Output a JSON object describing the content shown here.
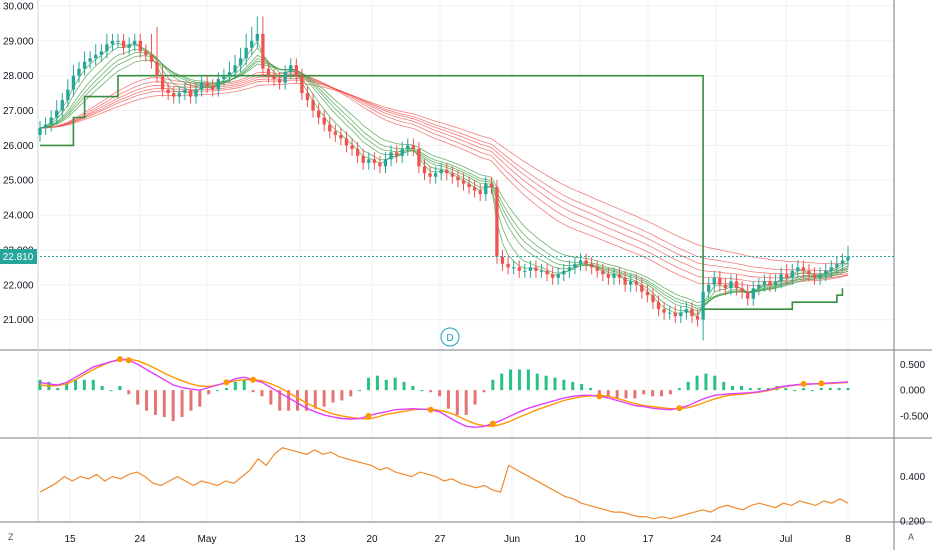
{
  "colors": {
    "up": "#26a69a",
    "down": "#ef5350",
    "ema_fast": "#43a047",
    "ema_slow": "#ef5350",
    "stop_green": "#388e3c",
    "stop_red": "#e53935",
    "macd": "#e040fb",
    "signal": "#ff9800",
    "hist_up": "#26c281",
    "hist_down": "#e57373",
    "rsi": "#ef8a2f",
    "grid": "#eef0f3",
    "price_line": "#26a69a",
    "badge": "#1e9fbf"
  },
  "current_price": "22.810",
  "event_marker": "D",
  "corner_left": "Z",
  "corner_right": "A",
  "x_ticks": [
    "15",
    "24",
    "May",
    "13",
    "20",
    "27",
    "Jun",
    "10",
    "17",
    "24",
    "Jul",
    "8"
  ],
  "chart_data": [
    {
      "type": "candlestick",
      "panel": "price",
      "ylim": [
        20.3,
        30.0
      ],
      "y_ticks": [
        "30.000",
        "29.000",
        "28.000",
        "27.000",
        "26.000",
        "25.000",
        "24.000",
        "23.000",
        "22.000",
        "21.000"
      ],
      "close": [
        26.5,
        26.6,
        26.8,
        27.0,
        27.3,
        27.6,
        28.0,
        28.2,
        28.4,
        28.5,
        28.6,
        28.7,
        28.9,
        29.0,
        29.0,
        28.8,
        28.9,
        29.0,
        28.7,
        28.6,
        28.4,
        28.0,
        27.6,
        27.5,
        27.4,
        27.5,
        27.6,
        27.4,
        27.6,
        27.8,
        27.7,
        27.6,
        27.9,
        28.0,
        28.1,
        28.3,
        28.5,
        28.8,
        29.0,
        29.2,
        28.2,
        28.0,
        27.9,
        27.8,
        28.1,
        28.3,
        28.0,
        27.5,
        27.3,
        27.0,
        26.8,
        26.6,
        26.4,
        26.3,
        26.2,
        26.0,
        25.9,
        25.7,
        25.5,
        25.6,
        25.5,
        25.4,
        25.6,
        25.8,
        25.7,
        25.9,
        26.0,
        25.9,
        25.4,
        25.2,
        25.1,
        25.2,
        25.3,
        25.2,
        25.1,
        25.0,
        24.9,
        24.8,
        24.7,
        24.6,
        24.9,
        24.8,
        22.8,
        22.6,
        22.5,
        22.5,
        22.4,
        22.4,
        22.5,
        22.4,
        22.4,
        22.3,
        22.2,
        22.3,
        22.4,
        22.5,
        22.6,
        22.7,
        22.6,
        22.5,
        22.4,
        22.3,
        22.2,
        22.3,
        22.2,
        22.0,
        22.1,
        22.0,
        21.8,
        21.7,
        21.5,
        21.3,
        21.2,
        21.2,
        21.1,
        21.2,
        21.3,
        21.1,
        21.0,
        21.8,
        22.0,
        22.2,
        22.0,
        21.9,
        22.1,
        21.9,
        21.8,
        21.6,
        21.9,
        22.0,
        22.1,
        22.0,
        22.1,
        22.3,
        22.2,
        22.4,
        22.5,
        22.4,
        22.3,
        22.2,
        22.3,
        22.4,
        22.5,
        22.6,
        22.7,
        22.81
      ],
      "open_offset": [
        -0.2,
        -0.1,
        -0.2,
        -0.2,
        -0.3,
        -0.3,
        -0.4,
        -0.2,
        -0.2,
        -0.1,
        -0.1,
        -0.1,
        -0.2,
        -0.1,
        0.0,
        0.2,
        -0.1,
        -0.1,
        0.3,
        0.1,
        0.2,
        0.4,
        0.4,
        0.1,
        0.1,
        -0.1,
        -0.1,
        0.2,
        -0.2,
        -0.2,
        0.1,
        0.1,
        -0.3,
        -0.1,
        -0.1,
        -0.2,
        -0.2,
        -0.3,
        -0.2,
        -0.2,
        1.0,
        0.2,
        0.1,
        0.1,
        -0.3,
        -0.2,
        0.3,
        0.5,
        0.2,
        0.3,
        0.2,
        0.2,
        0.2,
        0.1,
        0.1,
        0.2,
        0.1,
        0.2,
        0.2,
        -0.1,
        0.1,
        0.1,
        -0.2,
        -0.2,
        0.1,
        -0.2,
        -0.1,
        0.1,
        0.5,
        0.2,
        0.1,
        -0.1,
        -0.1,
        0.1,
        0.1,
        0.1,
        0.1,
        0.1,
        0.1,
        0.1,
        -0.3,
        0.1,
        2.0,
        0.2,
        0.1,
        0.0,
        0.1,
        0.0,
        -0.1,
        0.1,
        0.0,
        0.1,
        0.1,
        -0.1,
        -0.1,
        -0.1,
        -0.1,
        -0.1,
        0.1,
        0.1,
        0.1,
        0.1,
        0.1,
        -0.1,
        0.1,
        0.2,
        -0.1,
        0.1,
        0.2,
        0.1,
        0.2,
        0.2,
        0.1,
        0.0,
        0.1,
        -0.1,
        -0.1,
        0.2,
        0.1,
        -0.8,
        -0.2,
        -0.2,
        0.2,
        0.1,
        -0.2,
        0.2,
        0.1,
        0.2,
        -0.3,
        -0.1,
        -0.1,
        0.1,
        -0.1,
        -0.2,
        0.1,
        -0.2,
        -0.1,
        0.1,
        0.1,
        0.1,
        -0.1,
        -0.1,
        -0.1,
        -0.1,
        -0.1,
        -0.11
      ],
      "wick_up": [
        0.2,
        0.2,
        0.2,
        0.3,
        0.2,
        0.3,
        0.3,
        0.2,
        0.3,
        0.2,
        0.3,
        0.2,
        0.3,
        0.2,
        0.2,
        0.2,
        0.2,
        0.2,
        0.2,
        0.2,
        0.6,
        1.0,
        0.3,
        0.2,
        0.2,
        0.2,
        0.2,
        0.2,
        0.2,
        0.2,
        0.2,
        0.2,
        0.2,
        0.2,
        0.3,
        0.3,
        0.3,
        0.4,
        0.4,
        0.5,
        0.5,
        0.2,
        0.2,
        0.2,
        0.2,
        0.2,
        0.2,
        0.2,
        0.2,
        0.2,
        0.2,
        0.2,
        0.2,
        0.2,
        0.2,
        0.2,
        0.2,
        0.2,
        0.2,
        0.2,
        0.2,
        0.2,
        0.2,
        0.2,
        0.2,
        0.2,
        0.2,
        0.2,
        0.2,
        0.2,
        0.2,
        0.2,
        0.2,
        0.2,
        0.2,
        0.2,
        0.2,
        0.2,
        0.2,
        0.2,
        0.2,
        0.2,
        0.2,
        0.2,
        0.2,
        0.2,
        0.2,
        0.2,
        0.2,
        0.2,
        0.2,
        0.2,
        0.2,
        0.2,
        0.2,
        0.2,
        0.2,
        0.2,
        0.2,
        0.2,
        0.2,
        0.2,
        0.2,
        0.2,
        0.2,
        0.2,
        0.2,
        0.2,
        0.2,
        0.2,
        0.2,
        0.2,
        0.2,
        0.2,
        0.2,
        0.2,
        0.2,
        0.2,
        0.2,
        0.2,
        0.2,
        0.2,
        0.2,
        0.2,
        0.2,
        0.2,
        0.2,
        0.2,
        0.2,
        0.2,
        0.2,
        0.2,
        0.2,
        0.2,
        0.3,
        0.2,
        0.2,
        0.2,
        0.2,
        0.2,
        0.2,
        0.2,
        0.2,
        0.2,
        0.2,
        0.3
      ],
      "wick_down": [
        0.2,
        0.2,
        0.2,
        0.2,
        0.2,
        0.2,
        0.2,
        0.2,
        0.2,
        0.2,
        0.2,
        0.2,
        0.2,
        0.2,
        0.2,
        0.2,
        0.2,
        0.2,
        0.2,
        0.2,
        0.2,
        0.2,
        0.2,
        0.2,
        0.2,
        0.2,
        0.2,
        0.2,
        0.2,
        0.2,
        0.2,
        0.2,
        0.2,
        0.2,
        0.2,
        0.2,
        0.2,
        0.2,
        0.2,
        0.2,
        0.2,
        0.2,
        0.2,
        0.2,
        0.2,
        0.2,
        0.2,
        0.2,
        0.2,
        0.2,
        0.2,
        0.2,
        0.2,
        0.2,
        0.2,
        0.2,
        0.2,
        0.2,
        0.2,
        0.2,
        0.2,
        0.2,
        0.2,
        0.2,
        0.2,
        0.2,
        0.2,
        0.2,
        0.2,
        0.2,
        0.2,
        0.2,
        0.2,
        0.2,
        0.2,
        0.2,
        0.2,
        0.2,
        0.2,
        0.2,
        0.2,
        0.2,
        0.2,
        0.2,
        0.2,
        0.2,
        0.2,
        0.2,
        0.2,
        0.2,
        0.2,
        0.2,
        0.2,
        0.2,
        0.2,
        0.2,
        0.2,
        0.2,
        0.2,
        0.2,
        0.2,
        0.2,
        0.2,
        0.2,
        0.2,
        0.2,
        0.2,
        0.2,
        0.2,
        0.2,
        0.2,
        0.2,
        0.2,
        0.2,
        0.2,
        0.2,
        0.2,
        0.2,
        0.2,
        0.6,
        0.2,
        0.2,
        0.2,
        0.2,
        0.2,
        0.2,
        0.2,
        0.2,
        0.2,
        0.2,
        0.2,
        0.2,
        0.2,
        0.2,
        0.2,
        0.2,
        0.2,
        0.2,
        0.2,
        0.2,
        0.2,
        0.2,
        0.2,
        0.2,
        0.2,
        0.2
      ],
      "stop_levels": [
        26.0,
        26.0,
        26.0,
        26.0,
        26.0,
        26.0,
        26.8,
        26.8,
        27.4,
        27.4,
        27.4,
        27.4,
        27.4,
        27.4,
        28.0,
        28.0,
        28.0,
        28.0,
        28.0,
        28.0,
        28.0,
        28.0,
        28.0,
        28.0,
        28.0,
        28.0,
        28.0,
        28.0,
        28.0,
        28.0,
        28.0,
        28.0,
        28.0,
        28.0,
        28.0,
        28.0,
        28.0,
        28.0,
        28.0,
        28.0,
        28.0,
        28.0,
        28.0,
        28.0,
        28.0,
        28.0,
        28.0,
        28.0,
        28.0,
        28.0,
        28.0,
        28.0,
        28.0,
        28.0,
        28.0,
        28.0,
        28.0,
        28.0,
        28.0,
        28.0,
        28.0,
        28.0,
        28.0,
        28.0,
        28.0,
        28.0,
        28.0,
        28.0,
        28.0,
        28.0,
        28.0,
        28.0,
        28.0,
        28.0,
        28.0,
        28.0,
        28.0,
        28.0,
        28.0,
        28.0,
        28.0,
        28.0,
        28.0,
        28.0,
        28.0,
        28.0,
        28.0,
        28.0,
        28.0,
        28.0,
        28.0,
        28.0,
        28.0,
        28.0,
        28.0,
        28.0,
        28.0,
        28.0,
        28.0,
        28.0,
        28.0,
        28.0,
        28.0,
        28.0,
        28.0,
        28.0,
        28.0,
        28.0,
        28.0,
        28.0,
        28.0,
        28.0,
        28.0,
        28.0,
        28.0,
        28.0,
        28.0,
        28.0,
        28.0,
        21.3,
        21.3,
        21.3,
        21.3,
        21.3,
        21.3,
        21.3,
        21.3,
        21.3,
        21.3,
        21.3,
        21.3,
        21.3,
        21.3,
        21.3,
        21.3,
        21.5,
        21.5,
        21.5,
        21.5,
        21.5,
        21.5,
        21.5,
        21.5,
        21.7,
        21.9
      ]
    },
    {
      "type": "macd",
      "panel": "macd",
      "ylim": [
        -0.85,
        0.7
      ],
      "y_ticks": [
        "0.500",
        "0.000",
        "-0.500"
      ],
      "macd": [
        0.15,
        0.12,
        0.1,
        0.15,
        0.25,
        0.35,
        0.45,
        0.5,
        0.55,
        0.6,
        0.58,
        0.5,
        0.4,
        0.3,
        0.2,
        0.1,
        0.05,
        0.02,
        0.0,
        0.05,
        0.1,
        0.15,
        0.22,
        0.25,
        0.2,
        0.15,
        0.05,
        -0.05,
        -0.15,
        -0.25,
        -0.35,
        -0.42,
        -0.48,
        -0.52,
        -0.55,
        -0.56,
        -0.55,
        -0.5,
        -0.45,
        -0.42,
        -0.38,
        -0.37,
        -0.36,
        -0.37,
        -0.38,
        -0.42,
        -0.52,
        -0.62,
        -0.7,
        -0.72,
        -0.7,
        -0.65,
        -0.58,
        -0.5,
        -0.42,
        -0.35,
        -0.3,
        -0.25,
        -0.2,
        -0.15,
        -0.12,
        -0.1,
        -0.1,
        -0.12,
        -0.15,
        -0.2,
        -0.25,
        -0.3,
        -0.32,
        -0.35,
        -0.37,
        -0.38,
        -0.35,
        -0.3,
        -0.22,
        -0.15,
        -0.1,
        -0.08,
        -0.07,
        -0.06,
        -0.05,
        -0.03,
        0.0,
        0.05,
        0.08,
        0.1,
        0.12,
        0.12,
        0.13,
        0.14,
        0.15,
        0.16
      ],
      "signal": [
        0.1,
        0.08,
        0.09,
        0.12,
        0.2,
        0.3,
        0.4,
        0.48,
        0.55,
        0.58,
        0.6,
        0.57,
        0.5,
        0.42,
        0.33,
        0.25,
        0.18,
        0.12,
        0.08,
        0.07,
        0.1,
        0.14,
        0.18,
        0.2,
        0.21,
        0.18,
        0.12,
        0.05,
        -0.05,
        -0.15,
        -0.25,
        -0.33,
        -0.4,
        -0.46,
        -0.5,
        -0.53,
        -0.55,
        -0.56,
        -0.52,
        -0.47,
        -0.44,
        -0.41,
        -0.38,
        -0.37,
        -0.37,
        -0.39,
        -0.43,
        -0.5,
        -0.58,
        -0.65,
        -0.69,
        -0.7,
        -0.66,
        -0.6,
        -0.52,
        -0.45,
        -0.38,
        -0.32,
        -0.26,
        -0.2,
        -0.16,
        -0.13,
        -0.11,
        -0.1,
        -0.12,
        -0.16,
        -0.21,
        -0.26,
        -0.3,
        -0.32,
        -0.34,
        -0.36,
        -0.36,
        -0.34,
        -0.29,
        -0.23,
        -0.17,
        -0.12,
        -0.09,
        -0.08,
        -0.06,
        -0.04,
        -0.01,
        0.03,
        0.07,
        0.1,
        0.11,
        0.12,
        0.12,
        0.13,
        0.14,
        0.15
      ]
    },
    {
      "type": "line",
      "panel": "oscillator",
      "ylim": [
        0.2,
        0.56
      ],
      "y_ticks": [
        "0.400",
        "0.200"
      ],
      "values": [
        0.33,
        0.35,
        0.37,
        0.4,
        0.38,
        0.4,
        0.39,
        0.41,
        0.38,
        0.4,
        0.39,
        0.41,
        0.42,
        0.4,
        0.37,
        0.36,
        0.38,
        0.4,
        0.38,
        0.36,
        0.38,
        0.37,
        0.36,
        0.38,
        0.37,
        0.4,
        0.43,
        0.48,
        0.45,
        0.5,
        0.53,
        0.52,
        0.51,
        0.5,
        0.52,
        0.5,
        0.51,
        0.49,
        0.48,
        0.47,
        0.46,
        0.45,
        0.43,
        0.44,
        0.42,
        0.41,
        0.4,
        0.42,
        0.41,
        0.4,
        0.38,
        0.39,
        0.37,
        0.36,
        0.35,
        0.36,
        0.34,
        0.33,
        0.45,
        0.43,
        0.41,
        0.39,
        0.37,
        0.35,
        0.33,
        0.31,
        0.3,
        0.28,
        0.27,
        0.26,
        0.25,
        0.24,
        0.24,
        0.23,
        0.22,
        0.22,
        0.21,
        0.22,
        0.21,
        0.22,
        0.23,
        0.24,
        0.25,
        0.24,
        0.26,
        0.27,
        0.26,
        0.25,
        0.27,
        0.28,
        0.27,
        0.26,
        0.28,
        0.27,
        0.29,
        0.28,
        0.27,
        0.29,
        0.28,
        0.3,
        0.28
      ]
    }
  ]
}
